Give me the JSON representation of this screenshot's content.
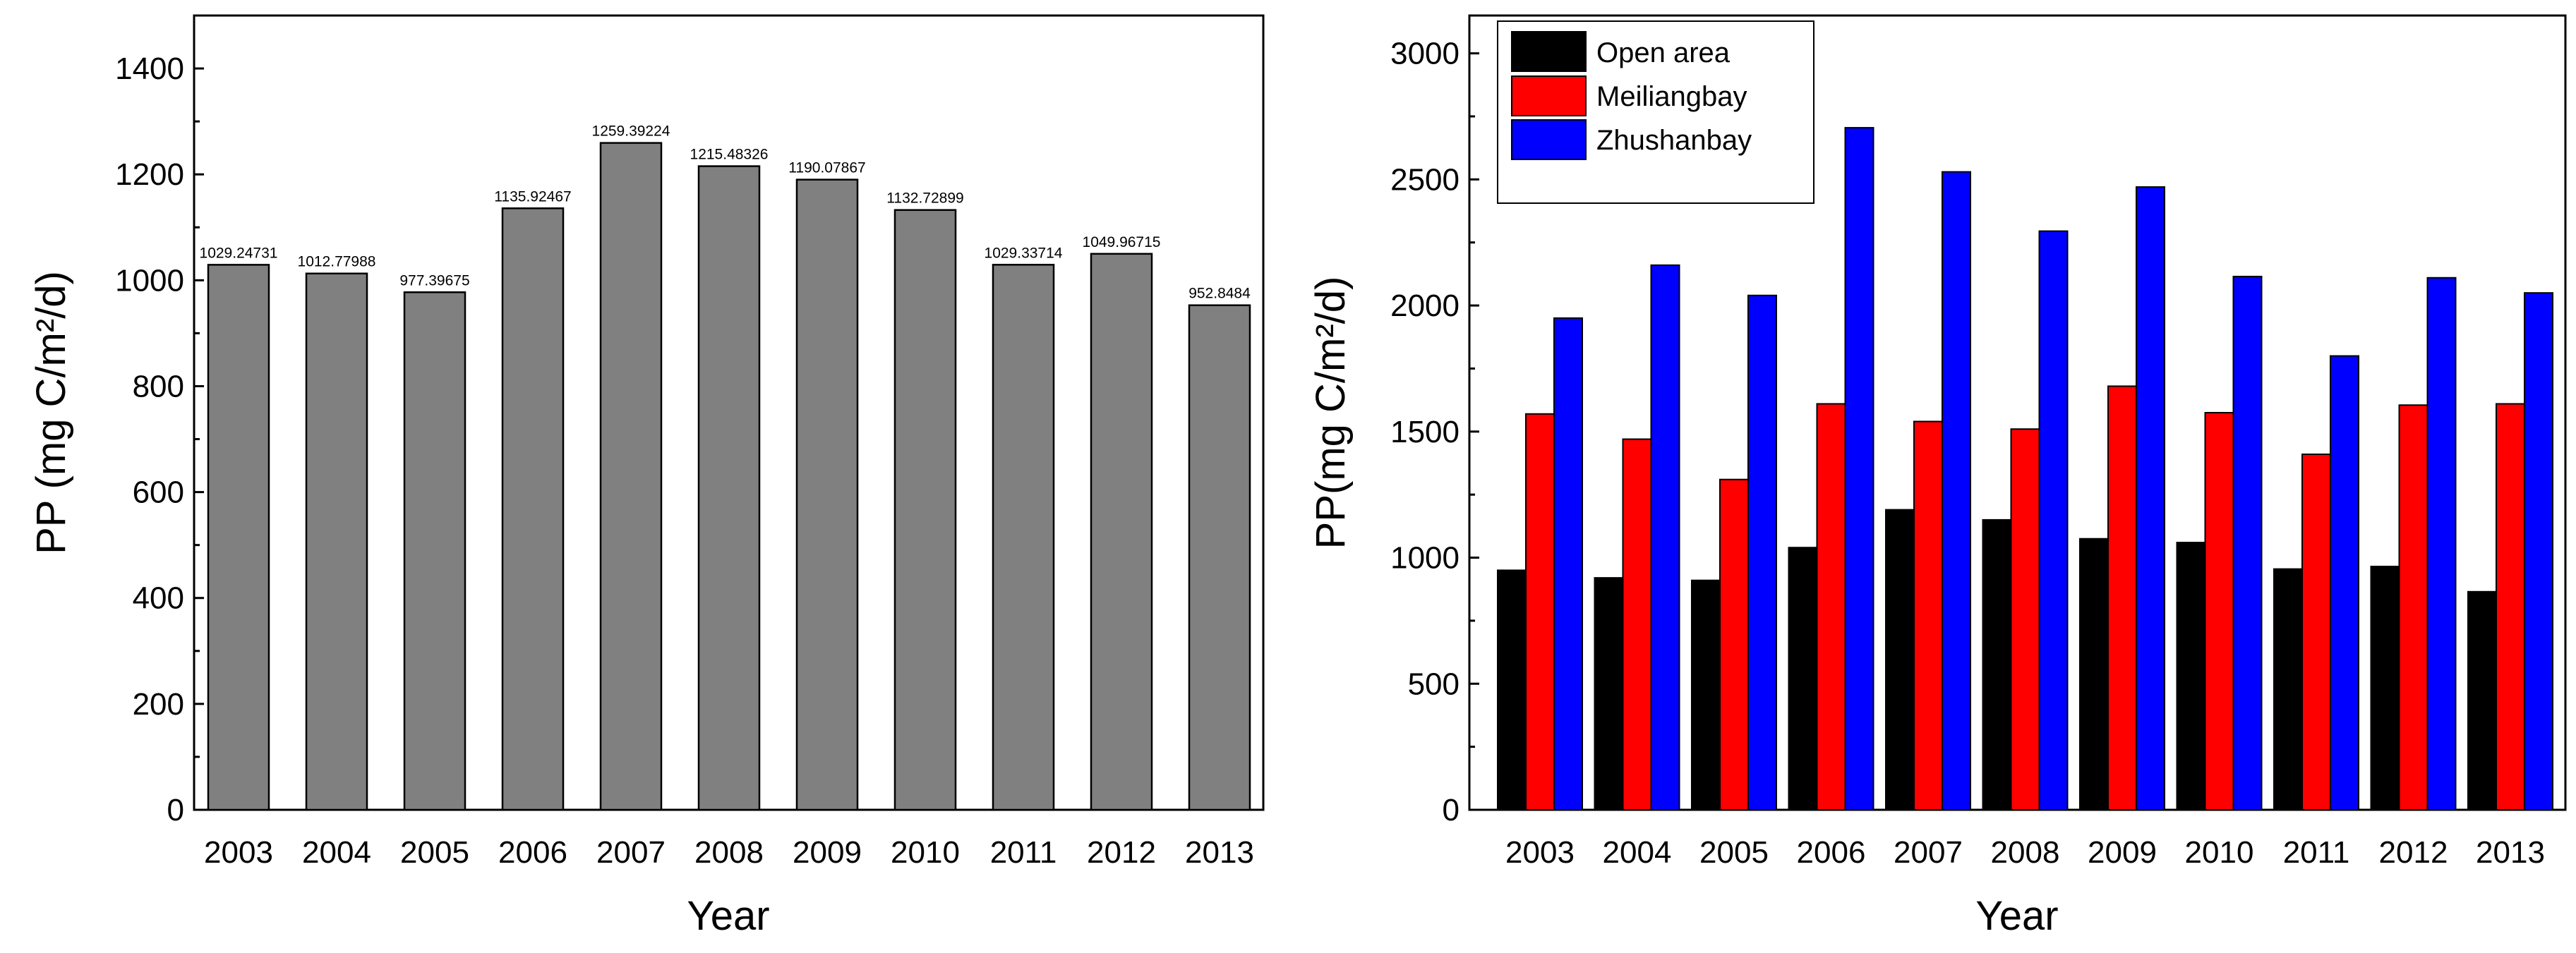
{
  "chart_data": [
    {
      "type": "bar",
      "categories": [
        "2003",
        "2004",
        "2005",
        "2006",
        "2007",
        "2008",
        "2009",
        "2010",
        "2011",
        "2012",
        "2013"
      ],
      "values": [
        1029.24731,
        1012.77988,
        977.39675,
        1135.92467,
        1259.39224,
        1215.48326,
        1190.07867,
        1132.72899,
        1029.33714,
        1049.96715,
        952.8484
      ],
      "data_labels": [
        "1029.24731",
        "1012.77988",
        "977.39675",
        "1135.92467",
        "1259.39224",
        "1215.48326",
        "1190.07867",
        "1132.72899",
        "1029.33714",
        "1049.96715",
        "952.8484"
      ],
      "xlabel": "Year",
      "ylabel": "PP (mg C/m²/d)",
      "ylim": [
        0,
        1500
      ],
      "yticks": [
        "0",
        "200",
        "400",
        "600",
        "800",
        "1000",
        "1200",
        "1400"
      ],
      "bar_color": "#808080"
    },
    {
      "type": "bar",
      "categories": [
        "2003",
        "2004",
        "2005",
        "2006",
        "2007",
        "2008",
        "2009",
        "2010",
        "2011",
        "2012",
        "2013"
      ],
      "series": [
        {
          "name": "Open area",
          "color": "#000000",
          "values": [
            950,
            920,
            910,
            1040,
            1190,
            1150,
            1075,
            1060,
            955,
            965,
            865
          ]
        },
        {
          "name": "Meiliangbay",
          "color": "#ff0000",
          "values": [
            1570,
            1470,
            1310,
            1610,
            1540,
            1510,
            1680,
            1575,
            1410,
            1605,
            1610
          ]
        },
        {
          "name": "Zhushanbay",
          "color": "#0000ff",
          "values": [
            1950,
            2160,
            2040,
            2705,
            2530,
            2295,
            2470,
            2115,
            1800,
            2110,
            2050
          ]
        }
      ],
      "xlabel": "Year",
      "ylabel": "PP(mg C/m²/d)",
      "ylim": [
        0,
        3150
      ],
      "yticks": [
        "0",
        "500",
        "1000",
        "1500",
        "2000",
        "2500",
        "3000"
      ],
      "legend_position": "top-left"
    }
  ]
}
